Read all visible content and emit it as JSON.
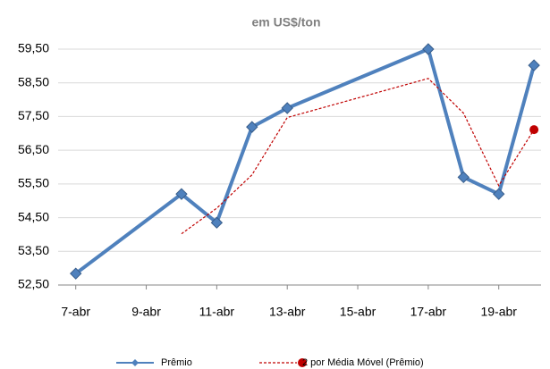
{
  "chart_data": {
    "type": "line",
    "subtitle": "em US$/ton",
    "x": [
      7,
      10,
      11,
      12,
      13,
      17,
      18,
      19,
      20
    ],
    "series": [
      {
        "name": "Prêmio",
        "color": "#4f81bd",
        "marker": "diamond",
        "values": [
          52.84,
          55.2,
          54.35,
          57.19,
          57.75,
          59.5,
          55.7,
          55.2,
          59.02
        ]
      },
      {
        "name": "2 por Média Móvel (Prêmio)",
        "color": "#c00000",
        "dashed": true,
        "marker": "last-circle",
        "values": [
          null,
          54.02,
          54.78,
          55.77,
          57.47,
          58.63,
          57.6,
          55.45,
          57.11
        ]
      }
    ],
    "xlim": [
      6.5,
      20.2
    ],
    "xticks": [
      {
        "value": 7,
        "label": "7-abr"
      },
      {
        "value": 9,
        "label": "9-abr"
      },
      {
        "value": 11,
        "label": "11-abr"
      },
      {
        "value": 13,
        "label": "13-abr"
      },
      {
        "value": 15,
        "label": "15-abr"
      },
      {
        "value": 17,
        "label": "17-abr"
      },
      {
        "value": 19,
        "label": "19-abr"
      }
    ],
    "ylim": [
      52.5,
      59.5
    ],
    "yticks": [
      {
        "value": 52.5,
        "label": "52,50"
      },
      {
        "value": 53.5,
        "label": "53,50"
      },
      {
        "value": 54.5,
        "label": "54,50"
      },
      {
        "value": 55.5,
        "label": "55,50"
      },
      {
        "value": 56.5,
        "label": "56,50"
      },
      {
        "value": 57.5,
        "label": "57,50"
      },
      {
        "value": 58.5,
        "label": "58,50"
      },
      {
        "value": 59.5,
        "label": "59,50"
      }
    ],
    "grid": true,
    "legend": "bottom"
  }
}
